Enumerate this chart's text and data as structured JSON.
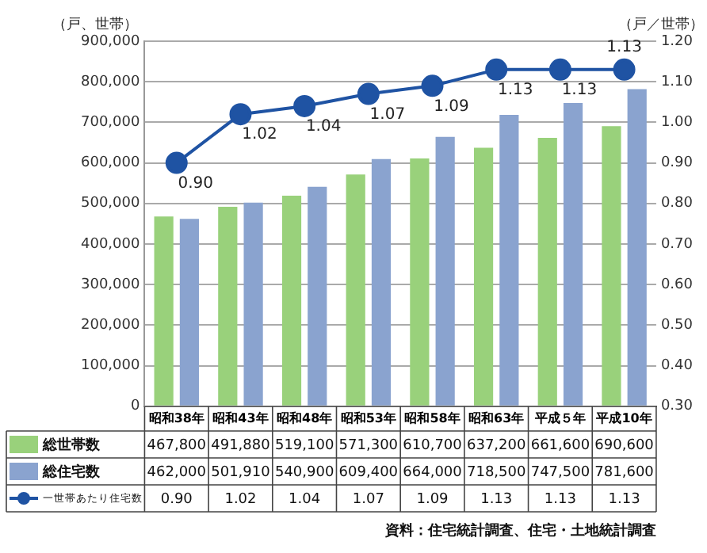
{
  "chart_data": {
    "type": "bar",
    "ylabel": "（戸、世帯）",
    "y2label": "（戸／世帯）",
    "categories": [
      "昭和38年",
      "昭和43年",
      "昭和48年",
      "昭和53年",
      "昭和58年",
      "昭和63年",
      "平成５年",
      "平成10年"
    ],
    "series": [
      {
        "name": "総世帯数",
        "color": "#99d17b",
        "values": [
          467800,
          491880,
          519100,
          571300,
          610700,
          637200,
          661600,
          690600
        ],
        "value_labels": [
          "467,800",
          "491,880",
          "519,100",
          "571,300",
          "610,700",
          "637,200",
          "661,600",
          "690,600"
        ]
      },
      {
        "name": "総住宅数",
        "color": "#8aa3cf",
        "values": [
          462000,
          501910,
          540900,
          609400,
          664000,
          718500,
          747500,
          781600
        ],
        "value_labels": [
          "462,000",
          "501,910",
          "540,900",
          "609,400",
          "664,000",
          "718,500",
          "747,500",
          "781,600"
        ]
      },
      {
        "name": "一世帯あたり住宅数",
        "type": "line",
        "axis": "y2",
        "color": "#1f53a3",
        "marker": "circle",
        "values": [
          0.9,
          1.02,
          1.04,
          1.07,
          1.09,
          1.13,
          1.13,
          1.13
        ],
        "value_labels": [
          "0.90",
          "1.02",
          "1.04",
          "1.07",
          "1.09",
          "1.13",
          "1.13",
          "1.13"
        ]
      }
    ],
    "ylim": [
      0,
      900000
    ],
    "yticks": [
      0,
      {
        "value": 100000,
        "label": "100,000"
      },
      {
        "value": 200000,
        "label": "200,000"
      },
      {
        "value": 300000,
        "label": "300,000"
      },
      {
        "value": 400000,
        "label": "400,000"
      },
      {
        "value": 500000,
        "label": "500,000"
      },
      {
        "value": 600000,
        "label": "600,000"
      },
      {
        "value": 700000,
        "label": "700,000"
      },
      {
        "value": 800000,
        "label": "800,000"
      },
      {
        "value": 900000,
        "label": "900,000"
      }
    ],
    "y2lim": [
      0.3,
      1.2
    ],
    "y2ticks": [
      {
        "value": 0.3,
        "label": "0.30"
      },
      {
        "value": 0.4,
        "label": "0.40"
      },
      {
        "value": 0.5,
        "label": "0.50"
      },
      {
        "value": 0.6,
        "label": "0.60"
      },
      {
        "value": 0.7,
        "label": "0.70"
      },
      {
        "value": 0.8,
        "label": "0.80"
      },
      {
        "value": 0.9,
        "label": "0.90"
      },
      {
        "value": 1.0,
        "label": "1.00"
      },
      {
        "value": 1.1,
        "label": "1.10"
      },
      {
        "value": 1.2,
        "label": "1.20"
      }
    ],
    "grid": "y",
    "legend": "bottom",
    "annotations": [
      "資料：住宅統計調査、住宅・土地統計調査"
    ]
  }
}
